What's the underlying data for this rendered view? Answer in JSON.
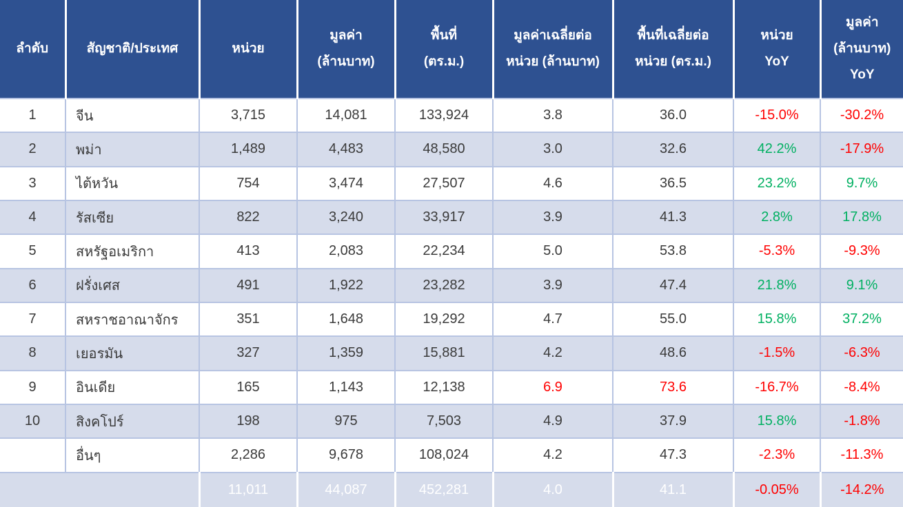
{
  "colors": {
    "header_background": "#2E5191",
    "band_row_background": "#D6DCEB",
    "grid_border": "#B7C4E2",
    "header_text": "#FFFFFF",
    "body_text": "#3A3A3A",
    "positive_value": "#00B061",
    "negative_value": "#FF0000",
    "total_row_background": "#2E5191"
  },
  "chart_data": {
    "type": "table",
    "columns": [
      {
        "id": "rank",
        "lines": [
          "ลำดับ"
        ]
      },
      {
        "id": "nationality",
        "lines": [
          "สัญชาติ/ประเทศ"
        ]
      },
      {
        "id": "units",
        "lines": [
          "หน่วย"
        ]
      },
      {
        "id": "value_mb",
        "lines": [
          "มูลค่า",
          "(ล้านบาท)"
        ]
      },
      {
        "id": "area_sqm",
        "lines": [
          "พื้นที่",
          "(ตร.ม.)"
        ]
      },
      {
        "id": "avg_value_per_unit",
        "lines": [
          "มูลค่าเฉลี่ยต่อ",
          "หน่วย (ล้านบาท)"
        ]
      },
      {
        "id": "avg_area_per_unit",
        "lines": [
          "พื้นที่เฉลี่ยต่อ",
          "หน่วย (ตร.ม.)"
        ]
      },
      {
        "id": "units_yoy",
        "lines": [
          "หน่วย",
          "YoY"
        ]
      },
      {
        "id": "value_yoy",
        "lines": [
          "มูลค่า",
          "(ล้านบาท)",
          "YoY"
        ]
      }
    ],
    "rows": [
      {
        "cells": [
          {
            "t": "1"
          },
          {
            "t": "จีน"
          },
          {
            "t": "3,715"
          },
          {
            "t": "14,081"
          },
          {
            "t": "133,924"
          },
          {
            "t": "3.8"
          },
          {
            "t": "36.0"
          },
          {
            "t": "-15.0%",
            "s": "neg"
          },
          {
            "t": "-30.2%",
            "s": "neg"
          }
        ]
      },
      {
        "cells": [
          {
            "t": "2"
          },
          {
            "t": "พม่า"
          },
          {
            "t": "1,489"
          },
          {
            "t": "4,483"
          },
          {
            "t": "48,580"
          },
          {
            "t": "3.0"
          },
          {
            "t": "32.6"
          },
          {
            "t": "42.2%",
            "s": "pos"
          },
          {
            "t": "-17.9%",
            "s": "neg"
          }
        ]
      },
      {
        "cells": [
          {
            "t": "3"
          },
          {
            "t": "ไต้หวัน"
          },
          {
            "t": "754"
          },
          {
            "t": "3,474"
          },
          {
            "t": "27,507"
          },
          {
            "t": "4.6"
          },
          {
            "t": "36.5"
          },
          {
            "t": "23.2%",
            "s": "pos"
          },
          {
            "t": "9.7%",
            "s": "pos"
          }
        ]
      },
      {
        "cells": [
          {
            "t": "4"
          },
          {
            "t": "รัสเซีย"
          },
          {
            "t": "822"
          },
          {
            "t": "3,240"
          },
          {
            "t": "33,917"
          },
          {
            "t": "3.9"
          },
          {
            "t": "41.3"
          },
          {
            "t": "2.8%",
            "s": "pos"
          },
          {
            "t": "17.8%",
            "s": "pos"
          }
        ]
      },
      {
        "cells": [
          {
            "t": "5"
          },
          {
            "t": "สหรัฐอเมริกา"
          },
          {
            "t": "413"
          },
          {
            "t": "2,083"
          },
          {
            "t": "22,234"
          },
          {
            "t": "5.0"
          },
          {
            "t": "53.8"
          },
          {
            "t": "-5.3%",
            "s": "neg"
          },
          {
            "t": "-9.3%",
            "s": "neg"
          }
        ]
      },
      {
        "cells": [
          {
            "t": "6"
          },
          {
            "t": "ฝรั่งเศส"
          },
          {
            "t": "491"
          },
          {
            "t": "1,922"
          },
          {
            "t": "23,282"
          },
          {
            "t": "3.9"
          },
          {
            "t": "47.4"
          },
          {
            "t": "21.8%",
            "s": "pos"
          },
          {
            "t": "9.1%",
            "s": "pos"
          }
        ]
      },
      {
        "cells": [
          {
            "t": "7"
          },
          {
            "t": "สหราชอาณาจักร"
          },
          {
            "t": "351"
          },
          {
            "t": "1,648"
          },
          {
            "t": "19,292"
          },
          {
            "t": "4.7"
          },
          {
            "t": "55.0"
          },
          {
            "t": "15.8%",
            "s": "pos"
          },
          {
            "t": "37.2%",
            "s": "pos"
          }
        ]
      },
      {
        "cells": [
          {
            "t": "8"
          },
          {
            "t": "เยอรมัน"
          },
          {
            "t": "327"
          },
          {
            "t": "1,359"
          },
          {
            "t": "15,881"
          },
          {
            "t": "4.2"
          },
          {
            "t": "48.6"
          },
          {
            "t": "-1.5%",
            "s": "neg"
          },
          {
            "t": "-6.3%",
            "s": "neg"
          }
        ]
      },
      {
        "cells": [
          {
            "t": "9"
          },
          {
            "t": "อินเดีย"
          },
          {
            "t": "165"
          },
          {
            "t": "1,143"
          },
          {
            "t": "12,138"
          },
          {
            "t": "6.9",
            "s": "neg"
          },
          {
            "t": "73.6",
            "s": "neg"
          },
          {
            "t": "-16.7%",
            "s": "neg"
          },
          {
            "t": "-8.4%",
            "s": "neg"
          }
        ]
      },
      {
        "cells": [
          {
            "t": "10"
          },
          {
            "t": "สิงคโปร์"
          },
          {
            "t": "198"
          },
          {
            "t": "975"
          },
          {
            "t": "7,503"
          },
          {
            "t": "4.9"
          },
          {
            "t": "37.9"
          },
          {
            "t": "15.8%",
            "s": "pos"
          },
          {
            "t": "-1.8%",
            "s": "neg"
          }
        ]
      },
      {
        "cells": [
          {
            "t": ""
          },
          {
            "t": "อื่นๆ"
          },
          {
            "t": "2,286"
          },
          {
            "t": "9,678"
          },
          {
            "t": "108,024"
          },
          {
            "t": "4.2"
          },
          {
            "t": "47.3"
          },
          {
            "t": "-2.3%",
            "s": "neg"
          },
          {
            "t": "-11.3%",
            "s": "neg"
          }
        ]
      }
    ],
    "total": {
      "label": "",
      "cells": [
        {
          "t": "11,011"
        },
        {
          "t": "44,087"
        },
        {
          "t": "452,281"
        },
        {
          "t": "4.0"
        },
        {
          "t": "41.1"
        },
        {
          "t": "-0.05%",
          "s": "neg"
        },
        {
          "t": "-14.2%",
          "s": "neg"
        }
      ]
    }
  }
}
